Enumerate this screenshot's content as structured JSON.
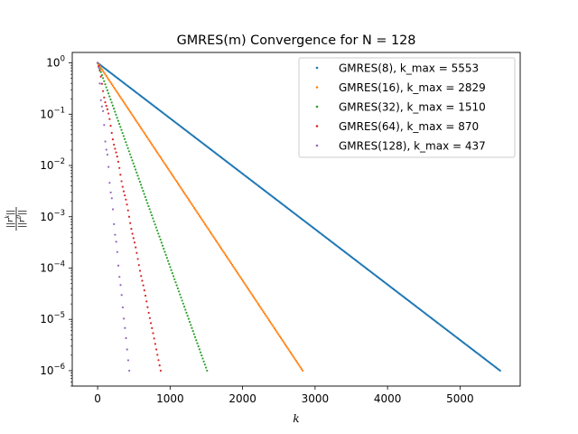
{
  "chart_data": {
    "type": "scatter",
    "title": "GMRES(m) Convergence for N = 128",
    "xlabel": "k",
    "ylabel_numerator": "||r",
    "ylabel_numerator_sup": "k",
    "ylabel_denominator": "||r",
    "ylabel_denominator_sup": "0",
    "ylabel_close": "||",
    "y_scale": "log",
    "xlim": [
      -350,
      5830
    ],
    "ylim": [
      5e-07,
      1.6
    ],
    "x_ticks": [
      0,
      1000,
      2000,
      3000,
      4000,
      5000
    ],
    "x_tick_labels": [
      "0",
      "1000",
      "2000",
      "3000",
      "4000",
      "5000"
    ],
    "y_ticks": [
      1e-06,
      1e-05,
      0.0001,
      0.001,
      0.01,
      0.1,
      1
    ],
    "y_tick_labels": [
      {
        "base": "10",
        "exp": "−6"
      },
      {
        "base": "10",
        "exp": "−5"
      },
      {
        "base": "10",
        "exp": "−4"
      },
      {
        "base": "10",
        "exp": "−3"
      },
      {
        "base": "10",
        "exp": "−2"
      },
      {
        "base": "10",
        "exp": "−1"
      },
      {
        "base": "10",
        "exp": "0"
      }
    ],
    "grid": false,
    "legend_position": "top-right",
    "series": [
      {
        "name": "GMRES(8), k_max = 5553",
        "color": "#1f77b4",
        "m": 8,
        "k_max": 5553,
        "y_start": 1.0,
        "y_end": 1e-06
      },
      {
        "name": "GMRES(16), k_max = 2829",
        "color": "#ff7f0e",
        "m": 16,
        "k_max": 2829,
        "y_start": 1.0,
        "y_end": 1e-06
      },
      {
        "name": "GMRES(32), k_max = 1510",
        "color": "#2ca02c",
        "m": 32,
        "k_max": 1510,
        "y_start": 1.0,
        "y_end": 1e-06
      },
      {
        "name": "GMRES(64), k_max = 870",
        "color": "#d62728",
        "m": 64,
        "k_max": 870,
        "y_start": 1.0,
        "y_end": 1e-06
      },
      {
        "name": "GMRES(128), k_max = 437",
        "color": "#9467bd",
        "m": 128,
        "k_max": 437,
        "y_start": 1.0,
        "y_end": 1e-06
      }
    ]
  }
}
